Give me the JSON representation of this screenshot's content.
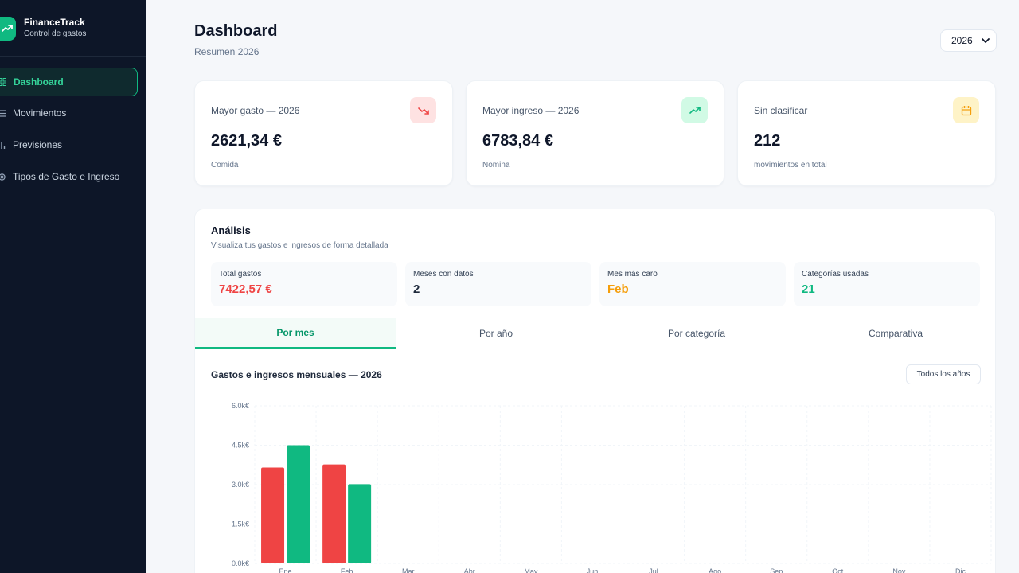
{
  "app": {
    "name": "FinanceTrack",
    "subtitle": "Control de gastos"
  },
  "sidebar": {
    "items": [
      {
        "label": "Dashboard",
        "icon": "grid-icon",
        "active": true
      },
      {
        "label": "Movimientos",
        "icon": "list-icon",
        "active": false
      },
      {
        "label": "Previsiones",
        "icon": "bar-chart-icon",
        "active": false
      },
      {
        "label": "Tipos de Gasto e Ingreso",
        "icon": "gear-icon",
        "active": false
      }
    ]
  },
  "header": {
    "title": "Dashboard",
    "subtitle": "Resumen 2026",
    "year_select": "2026"
  },
  "cards": [
    {
      "label": "Mayor gasto — 2026",
      "value": "2621,34 €",
      "sub": "Comida",
      "icon": "trending-down-icon",
      "color": "#ef4444",
      "bg": "#fee2e2"
    },
    {
      "label": "Mayor ingreso — 2026",
      "value": "6783,84 €",
      "sub": "Nomina",
      "icon": "trending-up-icon",
      "color": "#10b981",
      "bg": "#d1fae5"
    },
    {
      "label": "Sin clasificar",
      "value": "212",
      "sub": "movimientos en total",
      "icon": "calendar-icon",
      "color": "#f59e0b",
      "bg": "#fef3c7"
    }
  ],
  "analysis": {
    "title": "Análisis",
    "subtitle": "Visualiza tus gastos e ingresos de forma detallada",
    "stats": [
      {
        "label": "Total gastos",
        "value": "7422,57 €",
        "color": "#ef4444"
      },
      {
        "label": "Meses con datos",
        "value": "2",
        "color": "#1e293b"
      },
      {
        "label": "Mes más caro",
        "value": "Feb",
        "color": "#f59e0b"
      },
      {
        "label": "Categorías usadas",
        "value": "21",
        "color": "#10b981"
      }
    ],
    "tabs": [
      "Por mes",
      "Por año",
      "Por categoría",
      "Comparativa"
    ],
    "active_tab": 0,
    "chart_button": "Todos los años"
  },
  "chart_data": {
    "type": "bar",
    "title": "Gastos e ingresos mensuales — 2026",
    "categories": [
      "Ene",
      "Feb",
      "Mar",
      "Abr",
      "May",
      "Jun",
      "Jul",
      "Ago",
      "Sep",
      "Oct",
      "Nov",
      "Dic"
    ],
    "series": [
      {
        "values": [
          3650,
          3770,
          0,
          0,
          0,
          0,
          0,
          0,
          0,
          0,
          0,
          0
        ],
        "color": "#ef4444"
      },
      {
        "values": [
          4500,
          3020,
          0,
          0,
          0,
          0,
          0,
          0,
          0,
          0,
          0,
          0
        ],
        "color": "#10b981"
      }
    ],
    "ylim": [
      0,
      6000
    ],
    "yticks": [
      "0.0k€",
      "1.5k€",
      "3.0k€",
      "4.5k€",
      "6.0k€"
    ],
    "ytick_values": [
      0,
      1500,
      3000,
      4500,
      6000
    ],
    "grid": true
  }
}
